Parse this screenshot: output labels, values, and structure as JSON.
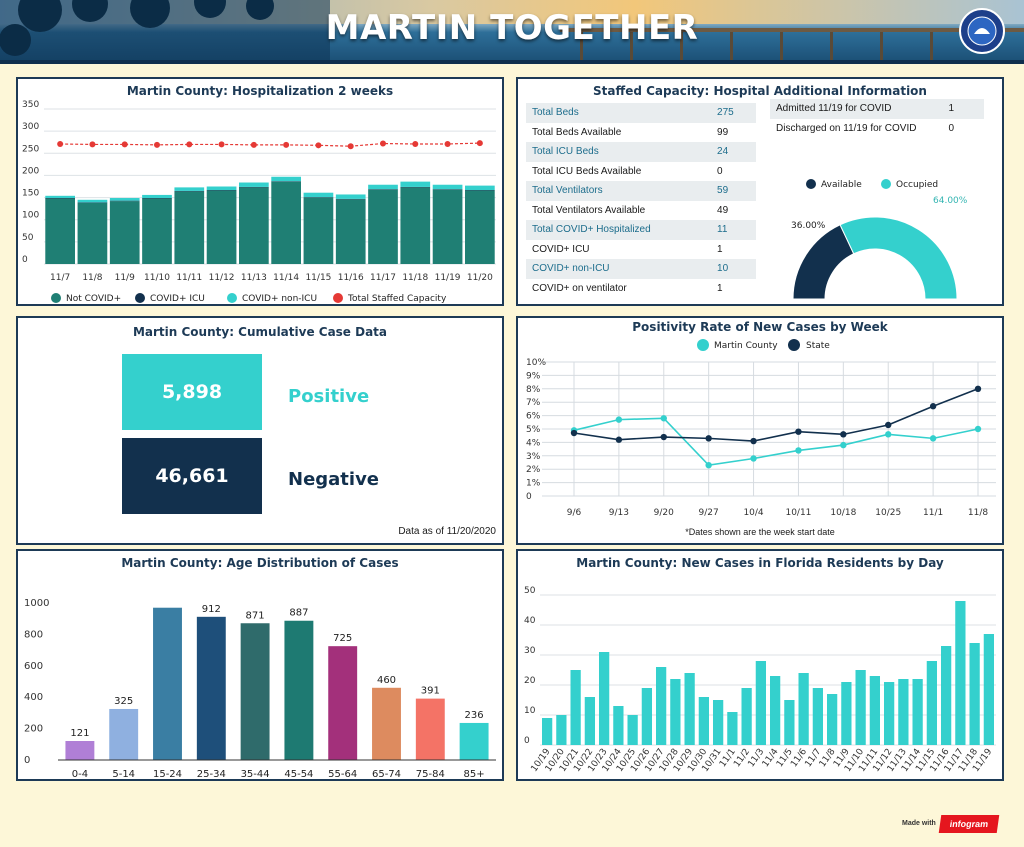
{
  "header": {
    "title": "MARTIN TOGETHER"
  },
  "footer": {
    "made_with": "Made with",
    "brand": "infogram"
  },
  "colors": {
    "teal_dark": "#1f7f74",
    "navy": "#12304d",
    "turquoise": "#34d0cd",
    "red": "#e53935",
    "panel_border": "#1d3a56",
    "background": "#fdf7d8"
  },
  "hospitalization": {
    "title": "Martin County: Hospitalization 2 weeks",
    "legend": [
      "Not COVID+",
      "COVID+ ICU",
      "COVID+ non-ICU",
      "Total Staffed Capacity"
    ]
  },
  "staffed": {
    "title": "Staffed Capacity: Hospital Additional Information",
    "rows": [
      {
        "k": "Total Beds",
        "v": "275"
      },
      {
        "k": "Total Beds Available",
        "v": "99"
      },
      {
        "k": "Total ICU Beds",
        "v": "24"
      },
      {
        "k": "Total ICU Beds Available",
        "v": "0"
      },
      {
        "k": "Total Ventilators",
        "v": "59"
      },
      {
        "k": "Total Ventilators Available",
        "v": "49"
      },
      {
        "k": "Total COVID+ Hospitalized",
        "v": "11"
      },
      {
        "k": "COVID+ ICU",
        "v": "1"
      },
      {
        "k": "COVID+ non-ICU",
        "v": "10"
      },
      {
        "k": "COVID+ on ventilator",
        "v": "1"
      }
    ],
    "admissions": [
      {
        "k": "Admitted 11/19 for COVID",
        "v": "1"
      },
      {
        "k": "Discharged on 11/19 for COVID",
        "v": "0"
      }
    ]
  },
  "cumulative": {
    "title": "Martin County: Cumulative Case Data",
    "positive_value": "5,898",
    "positive_label": "Positive",
    "negative_value": "46,661",
    "negative_label": "Negative",
    "as_of": "Data as of 11/20/2020"
  },
  "positivity": {
    "title": "Positivity Rate of New Cases by Week",
    "note": "*Dates shown are the week start date"
  },
  "age": {
    "title": "Martin County: Age Distribution of Cases"
  },
  "daily": {
    "title": "Martin County: New Cases in Florida Residents by Day"
  },
  "chart_data": [
    {
      "type": "bar",
      "stacked": true,
      "title": "Martin County: Hospitalization 2 weeks",
      "categories": [
        "11/7",
        "11/8",
        "11/9",
        "11/10",
        "11/11",
        "11/12",
        "11/13",
        "11/14",
        "11/15",
        "11/16",
        "11/17",
        "11/18",
        "11/19",
        "11/20"
      ],
      "series": [
        {
          "name": "Not COVID+",
          "color": "#1f7f74",
          "values": [
            148,
            138,
            142,
            148,
            164,
            166,
            173,
            186,
            150,
            146,
            168,
            173,
            168,
            166
          ]
        },
        {
          "name": "COVID+ ICU",
          "color": "#12304d",
          "values": [
            1,
            1,
            1,
            1,
            1,
            1,
            1,
            1,
            1,
            1,
            1,
            1,
            1,
            1
          ]
        },
        {
          "name": "COVID+ non-ICU",
          "color": "#34d0cd",
          "values": [
            5,
            6,
            6,
            7,
            8,
            8,
            10,
            10,
            10,
            10,
            10,
            12,
            10,
            10
          ]
        },
        {
          "name": "Total Staffed Capacity",
          "type": "line",
          "color": "#e53935",
          "values": [
            271,
            270,
            270,
            269,
            270,
            270,
            269,
            269,
            268,
            266,
            272,
            271,
            271,
            273
          ]
        }
      ],
      "ylim": [
        0,
        350
      ],
      "yticks": [
        0,
        50,
        100,
        150,
        200,
        250,
        300,
        350
      ],
      "legend": "bottom"
    },
    {
      "type": "pie",
      "title": "Staffed Capacity",
      "categories": [
        "Available",
        "Occupied"
      ],
      "values": [
        36.0,
        64.0
      ],
      "labels": [
        "36.00%",
        "64.00%"
      ],
      "colors": [
        "#12304d",
        "#34d0cd"
      ],
      "legend": "top"
    },
    {
      "type": "line",
      "title": "Positivity Rate of New Cases by Week",
      "x": [
        "9/6",
        "9/13",
        "9/20",
        "9/27",
        "10/4",
        "10/11",
        "10/18",
        "10/25",
        "11/1",
        "11/8"
      ],
      "series": [
        {
          "name": "Martin County",
          "color": "#34d0cd",
          "values": [
            4.9,
            5.7,
            5.8,
            2.3,
            2.8,
            3.4,
            3.8,
            4.6,
            4.3,
            5.0
          ]
        },
        {
          "name": "State",
          "color": "#12304d",
          "values": [
            4.7,
            4.2,
            4.4,
            4.3,
            4.1,
            4.8,
            4.6,
            5.3,
            6.7,
            8.0
          ]
        }
      ],
      "ylim": [
        0,
        10
      ],
      "yticks": [
        "0",
        "1%",
        "2%",
        "3%",
        "4%",
        "5%",
        "6%",
        "7%",
        "8%",
        "9%",
        "10%"
      ],
      "legend": "top"
    },
    {
      "type": "bar",
      "title": "Martin County: Age Distribution of Cases",
      "categories": [
        "0-4",
        "5-14",
        "15-24",
        "25-34",
        "35-44",
        "45-54",
        "55-64",
        "65-74",
        "75-84",
        "85+"
      ],
      "values": [
        121,
        325,
        970,
        912,
        871,
        887,
        725,
        460,
        391,
        236
      ],
      "data_labels": [
        "121",
        "325",
        "",
        "912",
        "871",
        "887",
        "725",
        "460",
        "391",
        "236"
      ],
      "colors": [
        "#b07fd6",
        "#8fb0e0",
        "#3a7ea3",
        "#1e4f7a",
        "#2f6b6b",
        "#1e7a72",
        "#a3307b",
        "#dd8b5f",
        "#f47366",
        "#34d0cd"
      ],
      "ylim": [
        0,
        1000
      ],
      "yticks": [
        0,
        200,
        400,
        600,
        800,
        1000
      ]
    },
    {
      "type": "bar",
      "title": "Martin County: New Cases in Florida Residents by Day",
      "categories": [
        "10/19",
        "10/20",
        "10/21",
        "10/22",
        "10/23",
        "10/24",
        "10/25",
        "10/26",
        "10/27",
        "10/28",
        "10/29",
        "10/30",
        "10/31",
        "11/1",
        "11/2",
        "11/3",
        "11/4",
        "11/5",
        "11/6",
        "11/7",
        "11/8",
        "11/9",
        "11/10",
        "11/11",
        "11/12",
        "11/13",
        "11/14",
        "11/15",
        "11/16",
        "11/17",
        "11/18",
        "11/19"
      ],
      "values": [
        9,
        10,
        25,
        16,
        31,
        13,
        10,
        19,
        26,
        22,
        24,
        16,
        15,
        11,
        19,
        28,
        23,
        15,
        24,
        19,
        17,
        21,
        25,
        23,
        21,
        22,
        22,
        28,
        33,
        48,
        34,
        37
      ],
      "color": "#34d0cd",
      "ylim": [
        0,
        50
      ],
      "yticks": [
        0,
        10,
        20,
        30,
        40,
        50
      ]
    }
  ]
}
